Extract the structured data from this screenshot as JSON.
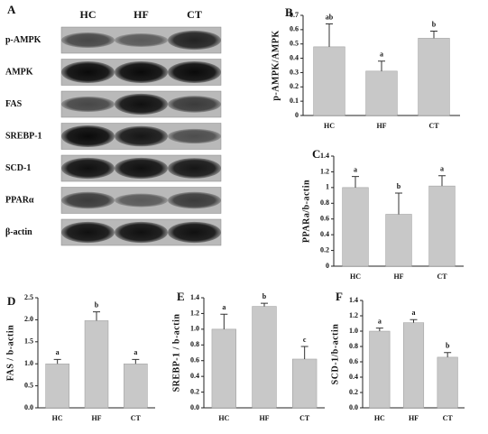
{
  "blot": {
    "panel": "A",
    "lanes": [
      "HC",
      "HF",
      "CT"
    ],
    "rows": [
      "p-AMPK",
      "AMPK",
      "FAS",
      "SREBP-1",
      "SCD-1",
      "PPARα",
      "β-actin"
    ]
  },
  "chart_data": [
    {
      "type": "bar",
      "panel": "B",
      "ylabel": "p-AMPK/AMPK",
      "categories": [
        "HC",
        "HF",
        "CT"
      ],
      "values": [
        0.48,
        0.31,
        0.54
      ],
      "errors": [
        0.16,
        0.07,
        0.05
      ],
      "annotations": [
        "ab",
        "a",
        "b"
      ],
      "color": "#c8c8c8",
      "ylim": [
        0,
        0.7
      ],
      "yticks": [
        0,
        0.1,
        0.2,
        0.3,
        0.4,
        0.5,
        0.6,
        0.7
      ]
    },
    {
      "type": "bar",
      "panel": "C",
      "ylabel": "PPARa/b-actin",
      "categories": [
        "HC",
        "HF",
        "CT"
      ],
      "values": [
        1.0,
        0.66,
        1.02
      ],
      "errors": [
        0.14,
        0.27,
        0.13
      ],
      "annotations": [
        "a",
        "b",
        "a"
      ],
      "color": "#c8c8c8",
      "ylim": [
        0,
        1.4
      ],
      "yticks": [
        0,
        0.2,
        0.4,
        0.6,
        0.8,
        1,
        1.2,
        1.4
      ]
    },
    {
      "type": "bar",
      "panel": "D",
      "ylabel": "FAS / b-actin",
      "categories": [
        "HC",
        "HF",
        "CT"
      ],
      "values": [
        1.0,
        1.98,
        1.0
      ],
      "errors": [
        0.1,
        0.2,
        0.1
      ],
      "annotations": [
        "a",
        "b",
        "a"
      ],
      "color": "#c8c8c8",
      "ylim": [
        0,
        2.5
      ],
      "yticks": [
        {
          "value": 0,
          "label": "0.0"
        },
        0.5,
        {
          "value": 1,
          "label": "1.0"
        },
        1.5,
        {
          "value": 2,
          "label": "2.0"
        },
        2.5
      ]
    },
    {
      "type": "bar",
      "panel": "E",
      "ylabel": "SREBP-1 / b-actin",
      "categories": [
        "HC",
        "HF",
        "CT"
      ],
      "values": [
        1.0,
        1.29,
        0.62
      ],
      "errors": [
        0.19,
        0.04,
        0.16
      ],
      "annotations": [
        "a",
        "b",
        "c"
      ],
      "color": "#c8c8c8",
      "ylim": [
        0,
        1.4
      ],
      "yticks": [
        {
          "value": 0,
          "label": "0.0"
        },
        0.2,
        0.4,
        0.6,
        0.8,
        {
          "value": 1,
          "label": "1.0"
        },
        1.2,
        1.4
      ]
    },
    {
      "type": "bar",
      "panel": "F",
      "ylabel": "SCD-1/b-actin",
      "categories": [
        "HC",
        "HF",
        "CT"
      ],
      "values": [
        1.0,
        1.11,
        0.66
      ],
      "errors": [
        0.04,
        0.04,
        0.06
      ],
      "annotations": [
        "a",
        "a",
        "b"
      ],
      "color": "#c8c8c8",
      "ylim": [
        0,
        1.4
      ],
      "yticks": [
        {
          "value": 0,
          "label": "0.0"
        },
        0.2,
        0.4,
        0.6,
        0.8,
        {
          "value": 1,
          "label": "1.0"
        },
        1.2,
        1.4
      ]
    }
  ]
}
